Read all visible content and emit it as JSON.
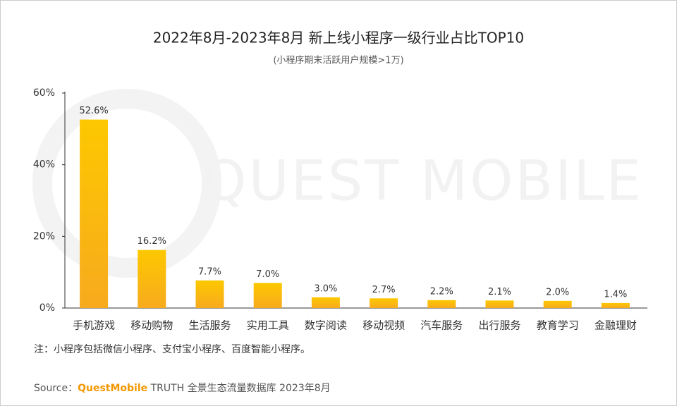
{
  "chart_data": {
    "type": "bar",
    "title": "2022年8月-2023年8月 新上线小程序一级行业占比TOP10",
    "subtitle": "(小程序期末活跃用户规模>1万)",
    "categories": [
      "手机游戏",
      "移动购物",
      "生活服务",
      "实用工具",
      "数字阅读",
      "移动视频",
      "汽车服务",
      "出行服务",
      "教育学习",
      "金融理财"
    ],
    "values": [
      52.6,
      16.2,
      7.7,
      7.0,
      3.0,
      2.7,
      2.2,
      2.1,
      2.0,
      1.4
    ],
    "value_labels": [
      "52.6%",
      "16.2%",
      "7.7%",
      "7.0%",
      "3.0%",
      "2.7%",
      "2.2%",
      "2.1%",
      "2.0%",
      "1.4%"
    ],
    "color": "#fdc800",
    "ylim": [
      0,
      60
    ],
    "yticks": [
      {
        "value": 0,
        "label": "0%"
      },
      {
        "value": 20,
        "label": "20%"
      },
      {
        "value": 40,
        "label": "40%"
      },
      {
        "value": 60,
        "label": "60%"
      }
    ],
    "grid": false,
    "watermark": "QUEST MOBILE",
    "note": "注：小程序包括微信小程序、支付宝小程序、百度智能小程序。",
    "source": {
      "prefix": "Source：",
      "brand": "QuestMobile",
      "text": " TRUTH 全景生态流量数据库 2023年8月"
    }
  }
}
